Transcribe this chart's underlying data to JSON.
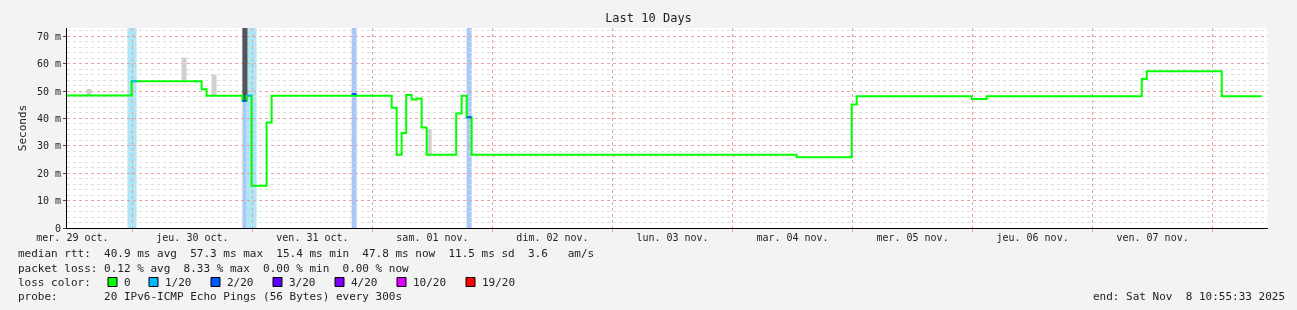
{
  "chart_data": {
    "type": "step",
    "title": "Last 10 Days",
    "ylabel": "Seconds",
    "xlim": [
      "2025-10-29T10:55",
      "2025-11-08T11:05"
    ],
    "xticks": [
      {
        "value": "2025-10-29T12:00",
        "label": "mer. 29 oct."
      },
      {
        "value": "2025-10-30T12:00",
        "label": "jeu. 30 oct."
      },
      {
        "value": "2025-10-31T12:00",
        "label": "ven. 31 oct."
      },
      {
        "value": "2025-11-01T12:00",
        "label": "sam. 01 nov."
      },
      {
        "value": "2025-11-02T12:00",
        "label": "dim. 02 nov."
      },
      {
        "value": "2025-11-03T12:00",
        "label": "lun. 03 nov."
      },
      {
        "value": "2025-11-04T12:00",
        "label": "mar. 04 nov."
      },
      {
        "value": "2025-11-05T12:00",
        "label": "mer. 05 nov."
      },
      {
        "value": "2025-11-06T12:00",
        "label": "jeu. 06 nov."
      },
      {
        "value": "2025-11-07T12:00",
        "label": "ven. 07 nov."
      }
    ],
    "ylim": [
      0,
      73
    ],
    "yticks": [
      0,
      {
        "value": 10,
        "label": "10 m"
      },
      {
        "value": 20,
        "label": "20 m"
      },
      {
        "value": 30,
        "label": "30 m"
      },
      {
        "value": 40,
        "label": "40 m"
      },
      {
        "value": 50,
        "label": "50 m"
      },
      {
        "value": 60,
        "label": "60 m"
      },
      {
        "value": 70,
        "label": "70 m"
      }
    ],
    "grid": true,
    "legend": "bottom left",
    "legend_title": "loss color:",
    "series": [
      {
        "type": "bar",
        "colors": [
          "#d0d0d0",
          "#d0d0d0",
          "#d0d0d0",
          "#555555",
          "#d0d0d0"
        ],
        "x": [
          "2025-10-29T14:50",
          "2025-10-30T09:50",
          "2025-10-30T15:50",
          "2025-10-30T22:00",
          "2025-11-01T10:50"
        ],
        "base": [
          48.3,
          53.6,
          48.3,
          46.4,
          26.7
        ],
        "values": [
          2.4,
          8.6,
          7.7,
          26.6,
          9.5
        ]
      },
      {
        "name": "0",
        "color": "#00ff00",
        "x": [
          "2025-10-29T10:55",
          "2025-10-29T23:50",
          "2025-10-30T13:50",
          "2025-10-30T14:50",
          "2025-10-30T22:00",
          "2025-10-30T22:50",
          "2025-10-30T23:50",
          "2025-10-31T02:50",
          "2025-10-31T03:50",
          "2025-11-01T03:50",
          "2025-11-01T04:50",
          "2025-11-01T05:50",
          "2025-11-01T06:45",
          "2025-11-01T07:50",
          "2025-11-01T08:50",
          "2025-11-01T09:50",
          "2025-11-01T10:50",
          "2025-11-01T16:45",
          "2025-11-01T17:50",
          "2025-11-01T18:50",
          "2025-11-01T19:50",
          "2025-11-04T12:50",
          "2025-11-04T23:50",
          "2025-11-05T00:50",
          "2025-11-05T23:50",
          "2025-11-06T02:50",
          "2025-11-07T09:50",
          "2025-11-07T10:50",
          "2025-11-08T01:50",
          "2025-11-08T09:50"
        ],
        "values": [
          48.4,
          53.6,
          50.6,
          48.3,
          46.4,
          48.3,
          15.4,
          38.5,
          48.3,
          43.9,
          26.7,
          34.7,
          48.5,
          46.9,
          47.3,
          36.7,
          26.7,
          41.8,
          48.3,
          40.4,
          26.7,
          25.8,
          45.1,
          48.1,
          47.1,
          48.1,
          54.4,
          57.2,
          48.1,
          48.1
        ]
      },
      {
        "name": "1/20",
        "color": "#00b8ff",
        "x": [
          "2025-10-29T23:50",
          "2025-10-30T00:50",
          null,
          "2025-10-30T22:50",
          "2025-10-30T23:50"
        ],
        "values": [
          53.6,
          53.6,
          null,
          48.3,
          48.3
        ]
      },
      {
        "name": "2/20",
        "color": "#0059ff",
        "x": [
          "2025-10-30T22:00",
          "2025-10-30T22:50",
          null,
          "2025-10-31T19:50",
          "2025-10-31T20:50",
          null,
          "2025-11-01T18:50",
          "2025-11-01T19:50"
        ],
        "values": [
          46.4,
          46.4,
          null,
          48.9,
          48.9,
          null,
          40.4,
          40.4
        ]
      },
      {
        "name": "3/20",
        "color": "#5e00ff"
      },
      {
        "name": "4/20",
        "color": "#7e00ff"
      },
      {
        "name": "10/20",
        "color": "#dd00ff"
      },
      {
        "name": "19/20",
        "color": "#ff0000"
      }
    ],
    "bands": [
      {
        "axis": "x",
        "from": "2025-10-29T23:00",
        "to": "2025-10-30T00:50",
        "color": "#a8e6f8"
      },
      {
        "axis": "x",
        "from": "2025-10-30T22:00",
        "to": "2025-10-30T22:50",
        "color": "#a8c8f8"
      },
      {
        "axis": "x",
        "from": "2025-10-30T22:50",
        "to": "2025-10-31T00:50",
        "color": "#a8e6f8"
      },
      {
        "axis": "x",
        "from": "2025-10-31T19:50",
        "to": "2025-10-31T20:50",
        "color": "#a8c8f8"
      },
      {
        "axis": "x",
        "from": "2025-11-01T18:50",
        "to": "2025-11-01T19:50",
        "color": "#a8c8f8"
      }
    ],
    "annotations": [
      "median rtt:  40.9 ms avg  57.3 ms max  15.4 ms min  47.8 ms now  11.5 ms sd  3.6   am/s",
      "packet loss: 0.12 % avg  8.33 % max  0.00 % min  0.00 % now",
      "probe:       20 IPv6-ICMP Echo Pings (56 Bytes) every 300s",
      "end: Sat Nov  8 10:55:33 2025"
    ]
  }
}
